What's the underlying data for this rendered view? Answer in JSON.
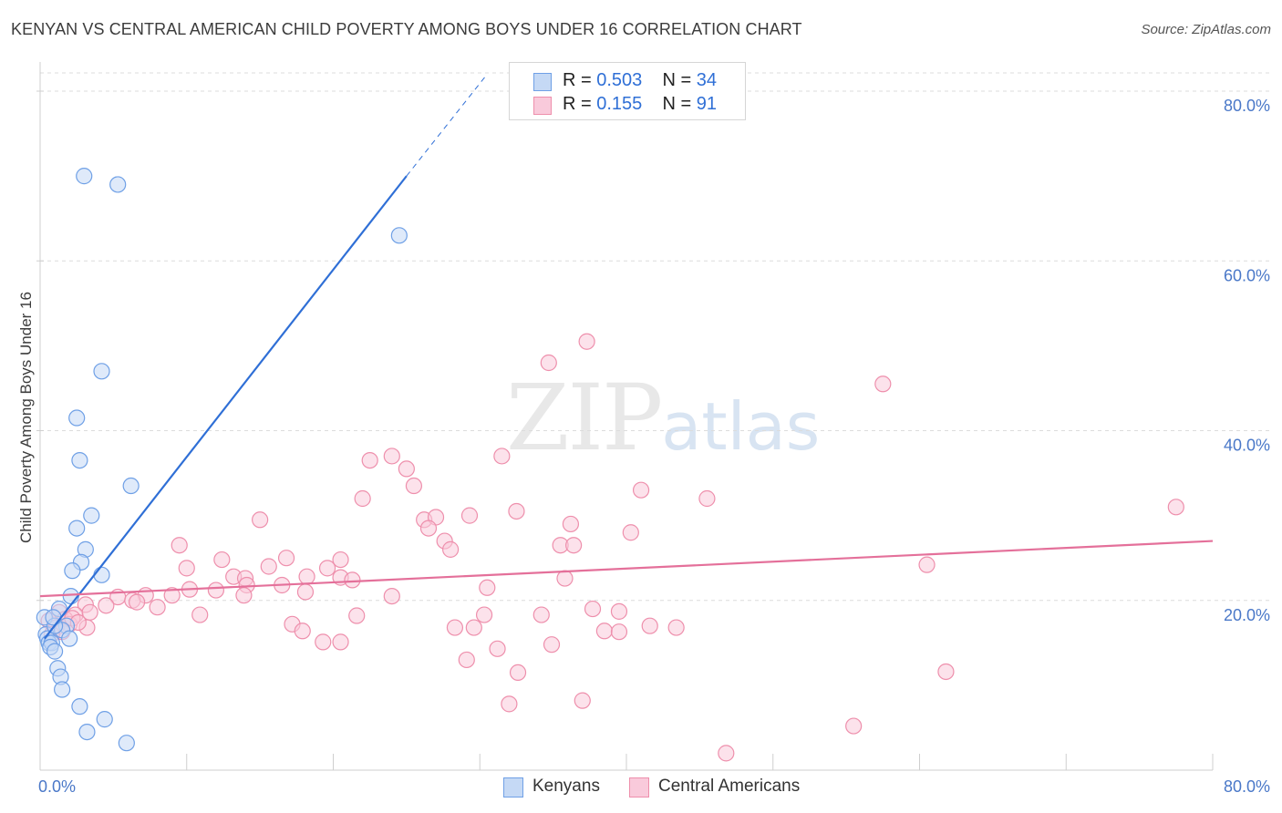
{
  "chart_data": {
    "type": "scatter",
    "title": "KENYAN VS CENTRAL AMERICAN CHILD POVERTY AMONG BOYS UNDER 16 CORRELATION CHART",
    "source": "Source: ZipAtlas.com",
    "ylabel": "Child Poverty Among Boys Under 16",
    "xlabel": "",
    "xlim": [
      0,
      80
    ],
    "ylim": [
      0,
      80
    ],
    "x_tick_labels": [
      "0.0%",
      "80.0%"
    ],
    "y_tick_labels": [
      "20.0%",
      "40.0%",
      "60.0%",
      "80.0%"
    ],
    "y_tick_values": [
      20,
      40,
      60,
      80
    ],
    "grid": true,
    "watermark": {
      "zip": "ZIP",
      "atlas": "atlas"
    },
    "legend_stats": [
      {
        "r_label": "R =",
        "r_value": "0.503",
        "n_label": "N =",
        "n_value": "34"
      },
      {
        "r_label": "R =",
        "r_value": "0.155",
        "n_label": "N =",
        "n_value": "91"
      }
    ],
    "series": [
      {
        "name": "Kenyans",
        "color": "#6fa0e6",
        "fill": "#c5d9f5",
        "trend_color": "#2f6fd6",
        "trend": {
          "x0": 0.3,
          "y0": 15.5,
          "x1": 25,
          "y1": 70,
          "dash_x1": 30.5,
          "dash_y1": 82
        },
        "points": [
          [
            3,
            70
          ],
          [
            5.3,
            69
          ],
          [
            24.5,
            63
          ],
          [
            4.2,
            47
          ],
          [
            2.5,
            41.5
          ],
          [
            2.7,
            36.5
          ],
          [
            6.2,
            33.5
          ],
          [
            3.5,
            30
          ],
          [
            2.5,
            28.5
          ],
          [
            3.1,
            26
          ],
          [
            2.8,
            24.5
          ],
          [
            2.2,
            23.5
          ],
          [
            4.2,
            23
          ],
          [
            2.1,
            20.5
          ],
          [
            1.3,
            19
          ],
          [
            0.3,
            18
          ],
          [
            1.8,
            17
          ],
          [
            1.5,
            16.5
          ],
          [
            0.4,
            16
          ],
          [
            0.5,
            15.5
          ],
          [
            2,
            15.5
          ],
          [
            0.6,
            15
          ],
          [
            0.8,
            15
          ],
          [
            0.7,
            14.5
          ],
          [
            1,
            14
          ],
          [
            1.2,
            12
          ],
          [
            1.4,
            11
          ],
          [
            1.5,
            9.5
          ],
          [
            2.7,
            7.5
          ],
          [
            4.4,
            6
          ],
          [
            3.2,
            4.5
          ],
          [
            5.9,
            3.2
          ],
          [
            1,
            17
          ],
          [
            0.9,
            18
          ]
        ]
      },
      {
        "name": "Central Americans",
        "color": "#ee8fac",
        "fill": "#f9cadb",
        "trend_color": "#e4709a",
        "trend": {
          "x0": 0,
          "y0": 20.5,
          "x1": 80,
          "y1": 27
        },
        "points": [
          [
            37.3,
            50.5
          ],
          [
            34.7,
            48
          ],
          [
            57.5,
            45.5
          ],
          [
            24,
            37
          ],
          [
            31.5,
            37
          ],
          [
            22.5,
            36.5
          ],
          [
            25,
            35.5
          ],
          [
            25.5,
            33.5
          ],
          [
            41,
            33
          ],
          [
            22,
            32
          ],
          [
            45.5,
            32
          ],
          [
            77.5,
            31
          ],
          [
            32.5,
            30.5
          ],
          [
            29.3,
            30
          ],
          [
            26.2,
            29.5
          ],
          [
            27,
            29.8
          ],
          [
            15,
            29.5
          ],
          [
            36.2,
            29
          ],
          [
            26.5,
            28.5
          ],
          [
            40.3,
            28
          ],
          [
            27.6,
            27
          ],
          [
            35.5,
            26.5
          ],
          [
            36.4,
            26.5
          ],
          [
            9.5,
            26.5
          ],
          [
            28,
            26
          ],
          [
            16.8,
            25
          ],
          [
            12.4,
            24.8
          ],
          [
            20.5,
            24.8
          ],
          [
            60.5,
            24.2
          ],
          [
            10,
            23.8
          ],
          [
            15.6,
            24
          ],
          [
            19.6,
            23.8
          ],
          [
            13.2,
            22.8
          ],
          [
            14,
            22.6
          ],
          [
            18.2,
            22.8
          ],
          [
            20.5,
            22.7
          ],
          [
            21.3,
            22.4
          ],
          [
            35.8,
            22.6
          ],
          [
            16.5,
            21.8
          ],
          [
            30.5,
            21.5
          ],
          [
            14.1,
            21.8
          ],
          [
            18.1,
            21
          ],
          [
            10.2,
            21.3
          ],
          [
            12,
            21.2
          ],
          [
            7.2,
            20.6
          ],
          [
            9,
            20.6
          ],
          [
            5.3,
            20.4
          ],
          [
            6.3,
            20
          ],
          [
            13.9,
            20.6
          ],
          [
            6.6,
            19.8
          ],
          [
            24,
            20.5
          ],
          [
            37.7,
            19
          ],
          [
            8,
            19.2
          ],
          [
            3.1,
            19.5
          ],
          [
            4.5,
            19.4
          ],
          [
            1.3,
            18.6
          ],
          [
            39.5,
            18.7
          ],
          [
            2.4,
            18.3
          ],
          [
            3.4,
            18.6
          ],
          [
            10.9,
            18.3
          ],
          [
            30.3,
            18.3
          ],
          [
            34.2,
            18.3
          ],
          [
            21.6,
            18.2
          ],
          [
            1.7,
            17.8
          ],
          [
            0.6,
            17.6
          ],
          [
            2,
            17.2
          ],
          [
            43.4,
            16.8
          ],
          [
            17.2,
            17.2
          ],
          [
            28.3,
            16.8
          ],
          [
            29.6,
            16.8
          ],
          [
            41.6,
            17
          ],
          [
            3.2,
            16.8
          ],
          [
            1.1,
            16.8
          ],
          [
            38.5,
            16.4
          ],
          [
            17.9,
            16.4
          ],
          [
            39.5,
            16.3
          ],
          [
            19.3,
            15.1
          ],
          [
            20.5,
            15.1
          ],
          [
            34.9,
            14.8
          ],
          [
            31.2,
            14.3
          ],
          [
            29.1,
            13
          ],
          [
            61.8,
            11.6
          ],
          [
            32.6,
            11.5
          ],
          [
            37,
            8.2
          ],
          [
            32,
            7.8
          ],
          [
            55.5,
            5.2
          ],
          [
            46.8,
            2
          ],
          [
            1.5,
            16.3
          ],
          [
            2.2,
            17.9
          ],
          [
            0.8,
            16
          ],
          [
            2.6,
            17.4
          ]
        ]
      }
    ]
  }
}
